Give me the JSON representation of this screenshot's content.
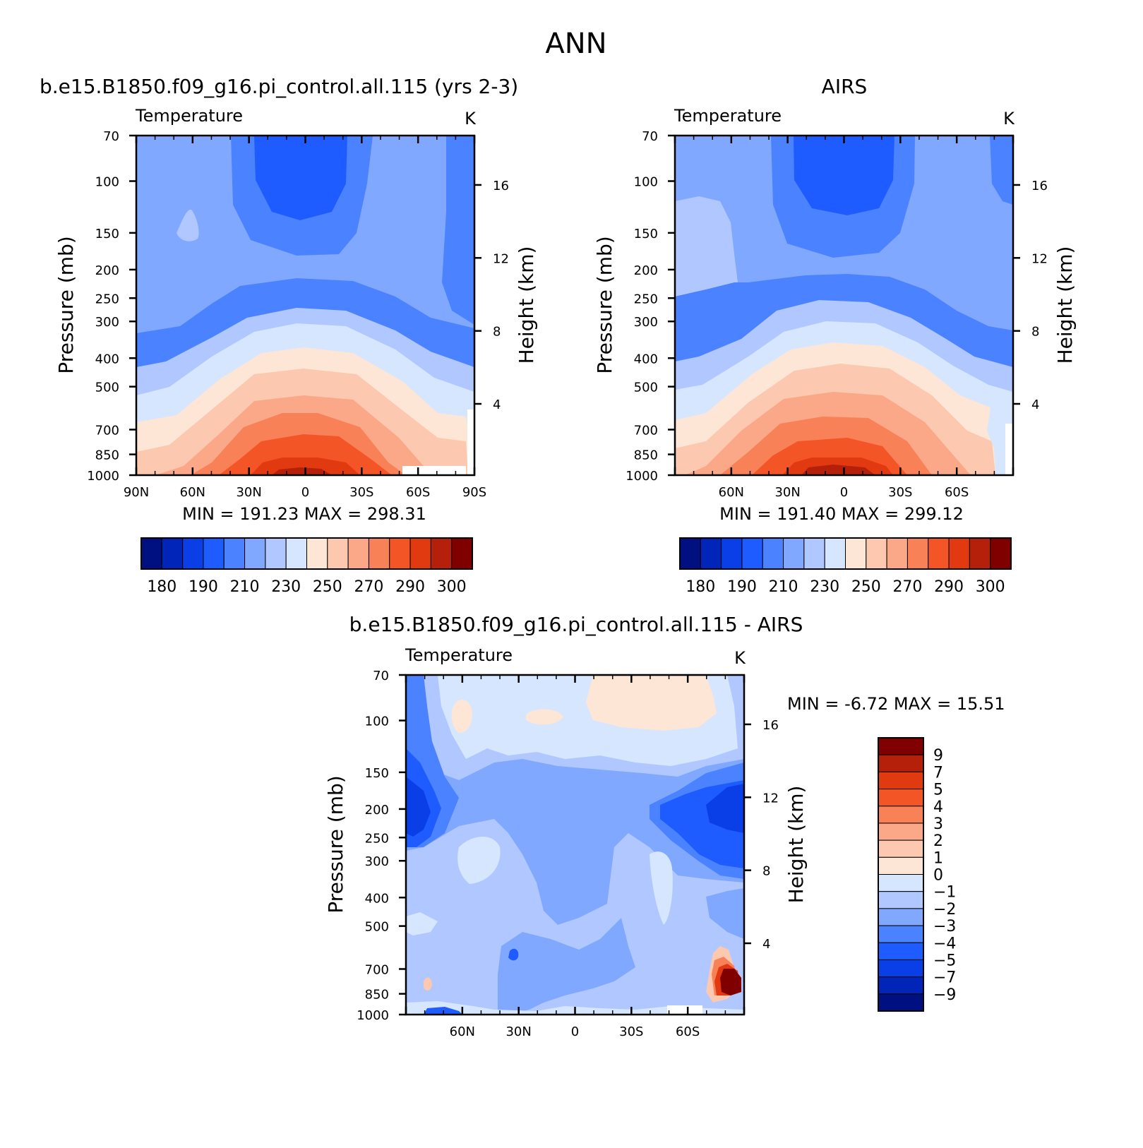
{
  "page": {
    "title": "ANN"
  },
  "panels": [
    {
      "id": "model",
      "header": "b.e15.B1850.f09_g16.pi_control.all.115 (yrs 2-3)",
      "variable": "Temperature",
      "units": "K",
      "min_label": "MIN",
      "min_value": "191.23",
      "max_label": "MAX",
      "max_value": "298.31"
    },
    {
      "id": "obs",
      "header": "AIRS",
      "variable": "Temperature",
      "units": "K",
      "min_label": "MIN",
      "min_value": "191.40",
      "max_label": "MAX",
      "max_value": "299.12"
    },
    {
      "id": "diff",
      "header": "b.e15.B1850.f09_g16.pi_control.all.115 - AIRS",
      "variable": "Temperature",
      "units": "K",
      "min_label": "MIN",
      "min_value": "-6.72",
      "max_label": "MAX",
      "max_value": "15.51"
    }
  ],
  "chart_data": [
    {
      "type": "heatmap",
      "title": "b.e15.B1850.f09_g16.pi_control.all.115 (yrs 2-3)",
      "subtitle": "Temperature",
      "units": "K",
      "xlabel": "",
      "ylabel": "Pressure (mb)",
      "y2label": "Height (km)",
      "x_ticks": [
        "90N",
        "60N",
        "30N",
        "0",
        "30S",
        "60S",
        "90S"
      ],
      "y_ticks": [
        70,
        100,
        150,
        200,
        250,
        300,
        400,
        500,
        700,
        850,
        1000
      ],
      "y2_ticks": [
        4,
        8,
        12,
        16
      ],
      "y_scale": "log",
      "ylim": [
        1000,
        70
      ],
      "xlim": [
        "90N",
        "90S"
      ],
      "colorbar": {
        "orientation": "horizontal",
        "labels": [
          "180",
          "190",
          "210",
          "230",
          "250",
          "270",
          "290",
          "300"
        ],
        "colors": [
          "#001080",
          "#0025b8",
          "#0a3ee6",
          "#1e5cff",
          "#4a82ff",
          "#80a8ff",
          "#b0c8ff",
          "#d6e6ff",
          "#fde6d6",
          "#fcc8b0",
          "#fba888",
          "#f88158",
          "#f45527",
          "#e23a10",
          "#b5200a",
          "#800000"
        ]
      },
      "levels_shown": [
        195,
        200,
        205,
        210,
        215,
        220,
        225,
        230,
        235,
        240,
        245,
        250,
        255,
        260,
        265,
        270,
        275,
        280,
        285,
        290,
        295,
        298.31
      ]
    },
    {
      "type": "heatmap",
      "title": "AIRS",
      "subtitle": "Temperature",
      "units": "K",
      "xlabel": "",
      "ylabel": "Pressure (mb)",
      "y2label": "Height (km)",
      "x_ticks": [
        "",
        "60N",
        "30N",
        "0",
        "30S",
        "60S",
        ""
      ],
      "y_ticks": [
        70,
        100,
        150,
        200,
        250,
        300,
        400,
        500,
        700,
        850,
        1000
      ],
      "y2_ticks": [
        4,
        8,
        12,
        16
      ],
      "y_scale": "log",
      "ylim": [
        1000,
        70
      ],
      "colorbar": {
        "orientation": "horizontal",
        "labels": [
          "180",
          "190",
          "210",
          "230",
          "250",
          "270",
          "290",
          "300"
        ],
        "colors": [
          "#001080",
          "#0025b8",
          "#0a3ee6",
          "#1e5cff",
          "#4a82ff",
          "#80a8ff",
          "#b0c8ff",
          "#d6e6ff",
          "#fde6d6",
          "#fcc8b0",
          "#fba888",
          "#f88158",
          "#f45527",
          "#e23a10",
          "#b5200a",
          "#800000"
        ]
      }
    },
    {
      "type": "heatmap",
      "title": "b.e15.B1850.f09_g16.pi_control.all.115 - AIRS",
      "subtitle": "Temperature",
      "units": "K",
      "xlabel": "",
      "ylabel": "Pressure (mb)",
      "y2label": "Height (km)",
      "x_ticks": [
        "",
        "60N",
        "30N",
        "0",
        "30S",
        "60S",
        ""
      ],
      "y_ticks": [
        70,
        100,
        150,
        200,
        250,
        300,
        400,
        500,
        700,
        850,
        1000
      ],
      "y2_ticks": [
        4,
        8,
        12,
        16
      ],
      "y_scale": "log",
      "ylim": [
        1000,
        70
      ],
      "colorbar": {
        "orientation": "vertical",
        "labels": [
          "9",
          "7",
          "5",
          "4",
          "3",
          "2",
          "1",
          "0",
          "-1",
          "-2",
          "-3",
          "-4",
          "-5",
          "-7",
          "-9"
        ],
        "colors": [
          "#800000",
          "#b5200a",
          "#e23a10",
          "#f45527",
          "#f88158",
          "#fba888",
          "#fcc8b0",
          "#fde6d6",
          "#d6e6ff",
          "#b0c8ff",
          "#80a8ff",
          "#4a82ff",
          "#1e5cff",
          "#0a3ee6",
          "#0025b8",
          "#001080"
        ]
      }
    }
  ]
}
